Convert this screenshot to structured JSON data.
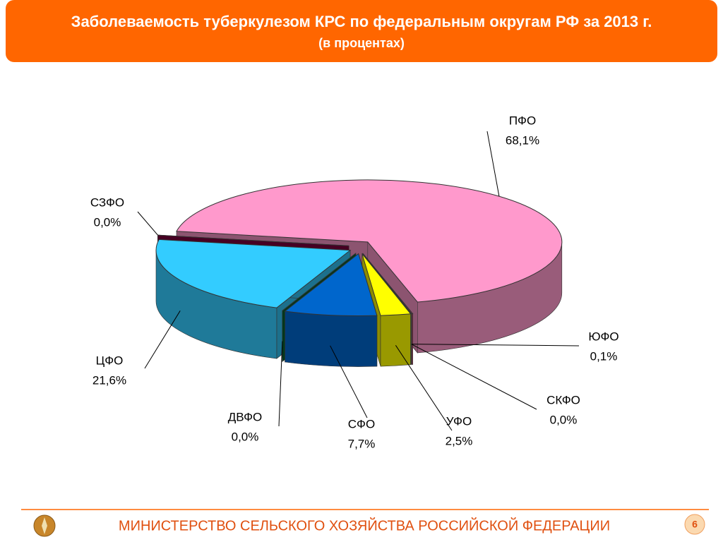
{
  "chart_data": {
    "type": "pie",
    "title": "Заболеваемость туберкулезом КРС по федеральным округам РФ за 2013 г.",
    "subtitle": "(в процентах)",
    "categories": [
      "ПФО",
      "ЮФО",
      "СКФО",
      "УФО",
      "СФО",
      "ДВФО",
      "ЦФО",
      "СЗФО"
    ],
    "values": [
      68.1,
      0.1,
      0.0,
      2.5,
      7.7,
      0.0,
      21.6,
      0.0
    ],
    "value_labels": [
      "68,1%",
      "0,1%",
      "0,0%",
      "2,5%",
      "7,7%",
      "0,0%",
      "21,6%",
      "0,0%"
    ],
    "colors": [
      "#ff99cc",
      "#cc3366",
      "#339966",
      "#ffff00",
      "#0066cc",
      "#006633",
      "#33ccff",
      "#800040"
    ]
  },
  "slide": {
    "footer": "МИНИСТЕРСТВО СЕЛЬСКОГО ХОЗЯЙСТВА РОССИЙСКОЙ ФЕДЕРАЦИИ",
    "page_number": 6
  }
}
